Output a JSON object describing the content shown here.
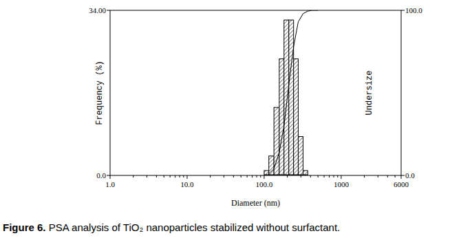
{
  "chart_data": {
    "type": "histogram",
    "xlabel": "Diameter (nm)",
    "ylabel": "Frequency (%)",
    "y2label": "Undersize",
    "log": "x",
    "bins": [
      100,
      115,
      134,
      157,
      181,
      209,
      241,
      277,
      320,
      368
    ],
    "values": [
      1,
      4,
      14,
      24,
      32,
      32,
      24,
      8,
      1
    ],
    "cumulative": {
      "axis": "y2",
      "x": [
        115,
        134,
        157,
        181,
        209,
        241,
        277,
        320,
        368,
        420,
        500
      ],
      "values": [
        1,
        4,
        14,
        30,
        55,
        78,
        93,
        98,
        99.5,
        100,
        100
      ]
    },
    "xlim": [
      1,
      6000
    ],
    "xticks": [
      {
        "value": 1,
        "label": "1.0"
      },
      {
        "value": 10,
        "label": "10.0"
      },
      {
        "value": 100,
        "label": "100.0"
      },
      1000,
      6000
    ],
    "ylim": [
      0,
      34
    ],
    "yticks": [
      {
        "value": 0,
        "label": "0.0"
      },
      {
        "value": 34,
        "label": "34.00"
      }
    ],
    "y2lim": [
      0,
      100
    ],
    "y2ticks": [
      {
        "value": 0,
        "label": "0.0"
      },
      {
        "value": 100,
        "label": "100.0"
      }
    ],
    "caption_label": "Figure 6.",
    "caption": "PSA analysis of TiO₂ nanoparticles stabilized without surfactant."
  }
}
